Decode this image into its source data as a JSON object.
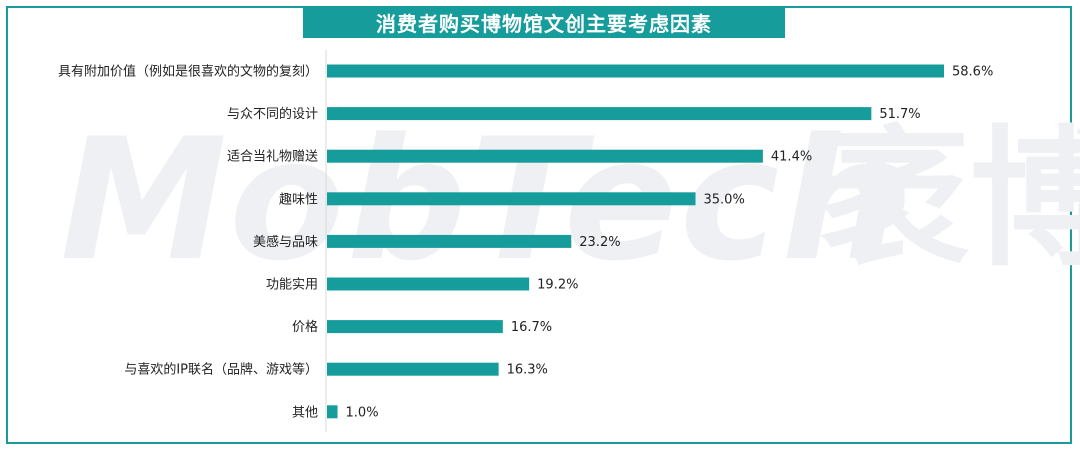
{
  "chart_data": {
    "type": "bar",
    "orientation": "horizontal",
    "title": "消费者购买博物馆文创主要考虑因素",
    "categories": [
      "具有附加价值（例如是很喜欢的文物的复刻）",
      "与众不同的设计",
      "适合当礼物赠送",
      "趣味性",
      "美感与品味",
      "功能实用",
      "价格",
      "与喜欢的IP联名（品牌、游戏等）",
      "其他"
    ],
    "values": [
      58.6,
      51.7,
      41.4,
      35.0,
      23.2,
      19.2,
      16.7,
      16.3,
      1.0
    ],
    "value_labels": [
      "58.6%",
      "51.7%",
      "41.4%",
      "35.0%",
      "23.2%",
      "19.2%",
      "16.7%",
      "16.3%",
      "1.0%"
    ],
    "xlim": [
      0,
      60
    ],
    "grid": false,
    "color": "#179c9c"
  },
  "watermark": {
    "latin": "MobTech",
    "cn": "袤博"
  }
}
